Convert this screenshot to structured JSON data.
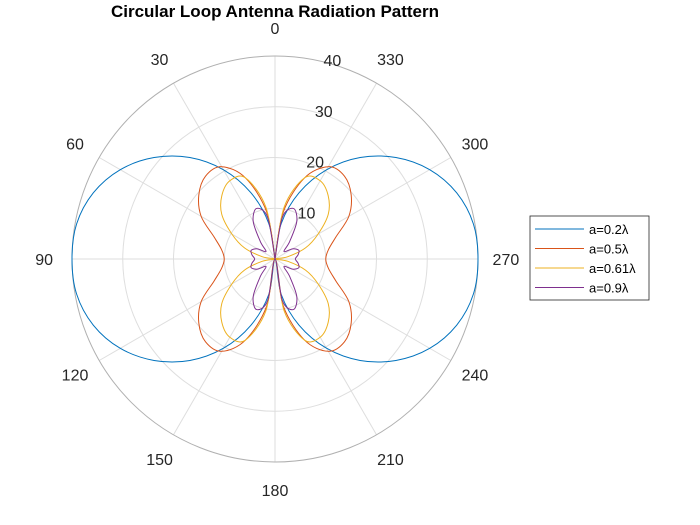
{
  "chart_data": {
    "type": "line",
    "subtype": "polar",
    "title": "Circular Loop Antenna Radiation Pattern",
    "theta_direction": "counterclockwise",
    "theta_zero_location": "top",
    "theta_ticks": [
      0,
      30,
      60,
      90,
      120,
      150,
      180,
      210,
      240,
      270,
      300,
      330
    ],
    "theta_tick_labels": [
      "0",
      "30",
      "60",
      "90",
      "120",
      "150",
      "180",
      "210",
      "240",
      "270",
      "300",
      "330"
    ],
    "rlim": [
      0,
      40
    ],
    "r_ticks": [
      10,
      20,
      30,
      40
    ],
    "r_tick_labels": [
      "10",
      "20",
      "30",
      "40"
    ],
    "grid": true,
    "legend_position": "right",
    "series": [
      {
        "name": "a=0.2λ",
        "color": "#0072BD",
        "theta_deg": [
          0,
          10,
          20,
          30,
          40,
          50,
          60,
          70,
          80,
          90,
          100,
          110,
          120,
          130,
          140,
          150,
          160,
          170,
          180,
          190,
          200,
          210,
          220,
          230,
          240,
          250,
          260,
          270,
          280,
          290,
          300,
          310,
          320,
          330,
          340,
          350,
          360
        ],
        "r": [
          0,
          7.1,
          13.9,
          20.3,
          26.1,
          31.1,
          35.2,
          38.1,
          39.7,
          40.0,
          39.7,
          38.1,
          35.2,
          31.1,
          26.1,
          20.3,
          13.9,
          7.1,
          0,
          7.1,
          13.9,
          20.3,
          26.1,
          31.1,
          35.2,
          38.1,
          39.7,
          40.0,
          39.7,
          38.1,
          35.2,
          31.1,
          26.1,
          20.3,
          13.9,
          7.1,
          0
        ]
      },
      {
        "name": "a=0.5λ",
        "color": "#D95319",
        "theta_deg": [
          0,
          10,
          20,
          30,
          40,
          50,
          60,
          70,
          80,
          90,
          100,
          110,
          120,
          130,
          140,
          150,
          160,
          170,
          180,
          190,
          200,
          210,
          220,
          230,
          240,
          250,
          260,
          270,
          280,
          290,
          300,
          310,
          320,
          330,
          340,
          350,
          360
        ],
        "r": [
          0,
          9.4,
          17.0,
          21.0,
          21.3,
          19.6,
          16.8,
          12.8,
          10.7,
          10.0,
          10.7,
          12.8,
          16.8,
          19.6,
          21.3,
          21.0,
          17.0,
          9.4,
          0,
          9.4,
          17.0,
          21.0,
          21.3,
          19.6,
          16.8,
          12.8,
          10.7,
          10.0,
          10.7,
          12.8,
          16.8,
          19.6,
          21.3,
          21.0,
          17.0,
          9.4,
          0
        ]
      },
      {
        "name": "a=0.61λ",
        "color": "#EDB120",
        "theta_deg": [
          0,
          10,
          20,
          30,
          40,
          50,
          60,
          70,
          80,
          90,
          100,
          110,
          120,
          130,
          140,
          150,
          160,
          170,
          180,
          190,
          200,
          210,
          220,
          230,
          240,
          250,
          260,
          270,
          280,
          290,
          300,
          310,
          320,
          330,
          340,
          350,
          360
        ],
        "r": [
          0,
          10.4,
          17.0,
          17.8,
          16.3,
          13.7,
          9.8,
          6.4,
          2.5,
          0.0,
          2.5,
          6.4,
          9.8,
          13.7,
          16.3,
          17.8,
          17.0,
          10.4,
          0,
          10.4,
          17.0,
          17.8,
          16.3,
          13.7,
          9.8,
          6.4,
          2.5,
          0.0,
          2.5,
          6.4,
          9.8,
          13.7,
          16.3,
          17.8,
          17.0,
          10.4,
          0
        ]
      },
      {
        "name": "a=0.9λ",
        "color": "#7E2F8E",
        "theta_deg": [
          0,
          10,
          20,
          30,
          40,
          50,
          60,
          70,
          80,
          90,
          100,
          110,
          120,
          130,
          140,
          150,
          160,
          170,
          180,
          190,
          200,
          210,
          220,
          230,
          240,
          250,
          260,
          270,
          280,
          290,
          300,
          310,
          320,
          330,
          340,
          350,
          360
        ],
        "r": [
          0,
          8.3,
          10.6,
          8.6,
          4.5,
          2.3,
          4.0,
          5.0,
          4.6,
          4.0,
          4.6,
          5.0,
          4.0,
          2.3,
          4.5,
          8.6,
          10.6,
          8.3,
          0,
          8.3,
          10.6,
          8.6,
          4.5,
          2.3,
          4.0,
          5.0,
          4.6,
          4.0,
          4.6,
          5.0,
          4.0,
          2.3,
          4.5,
          8.6,
          10.6,
          8.3,
          0
        ]
      }
    ]
  }
}
